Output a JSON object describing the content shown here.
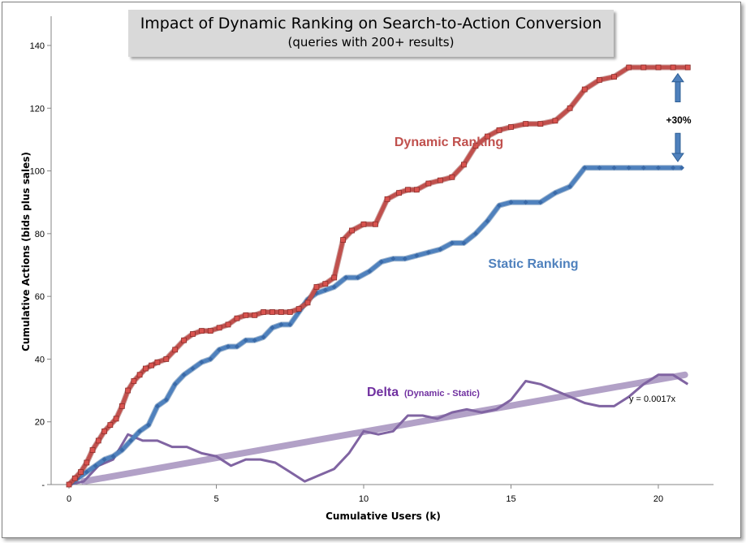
{
  "chart_data": {
    "type": "line",
    "title": "Impact of Dynamic Ranking on Search-to-Action Conversion",
    "subtitle": "(queries  with 200+ results)",
    "xlabel": "Cumulative Users (k)",
    "ylabel": "Cumulative Actions (bids plus sales)",
    "xlim": [
      -1,
      22
    ],
    "ylim": [
      0,
      140
    ],
    "x_ticks": [
      "0",
      "5",
      "10",
      "15",
      "20"
    ],
    "y_ticks": [
      "-",
      "20",
      "40",
      "60",
      "80",
      "100",
      "120",
      "140"
    ],
    "grid": false,
    "series": [
      {
        "name": "Dynamic Ranking",
        "color": "#c0504d",
        "marker": "square",
        "x": [
          0,
          0.2,
          0.4,
          0.6,
          0.8,
          1.0,
          1.2,
          1.4,
          1.6,
          1.8,
          2.0,
          2.2,
          2.4,
          2.6,
          2.8,
          3.0,
          3.3,
          3.6,
          3.9,
          4.2,
          4.5,
          4.8,
          5.1,
          5.4,
          5.7,
          6.0,
          6.3,
          6.6,
          6.9,
          7.2,
          7.5,
          7.8,
          8.1,
          8.4,
          8.7,
          9.0,
          9.3,
          9.6,
          10.0,
          10.4,
          10.8,
          11.2,
          11.5,
          11.8,
          12.2,
          12.6,
          13.0,
          13.4,
          13.8,
          14.2,
          14.6,
          15.0,
          15.5,
          16.0,
          16.5,
          17.0,
          17.5,
          18.0,
          18.5,
          19.0,
          19.5,
          20.0,
          20.5,
          21.0
        ],
        "y": [
          0,
          2,
          4,
          7,
          11,
          14,
          17,
          19,
          21,
          25,
          30,
          33,
          35,
          37,
          38,
          39,
          40,
          43,
          46,
          48,
          49,
          49,
          50,
          51,
          53,
          54,
          54,
          55,
          55,
          55,
          55,
          56,
          58,
          63,
          64,
          66,
          78,
          81,
          83,
          83,
          91,
          93,
          94,
          94,
          96,
          97,
          98,
          102,
          108,
          111,
          113,
          114,
          115,
          115,
          116,
          120,
          126,
          129,
          130,
          133,
          133,
          133,
          133,
          133
        ]
      },
      {
        "name": "Static Ranking",
        "color": "#4f81bd",
        "marker": "diamond",
        "x": [
          0,
          0.3,
          0.6,
          0.9,
          1.2,
          1.5,
          1.8,
          2.1,
          2.4,
          2.7,
          3.0,
          3.3,
          3.6,
          3.9,
          4.2,
          4.5,
          4.8,
          5.1,
          5.4,
          5.7,
          6.0,
          6.3,
          6.6,
          6.9,
          7.2,
          7.5,
          7.8,
          8.1,
          8.4,
          8.7,
          9.0,
          9.4,
          9.8,
          10.2,
          10.6,
          11.0,
          11.4,
          11.8,
          12.2,
          12.6,
          13.0,
          13.4,
          13.8,
          14.2,
          14.6,
          15.0,
          15.5,
          16.0,
          16.5,
          17.0,
          17.5,
          18.0,
          18.5,
          19.0,
          19.5,
          20.0,
          20.5,
          20.8
        ],
        "y": [
          0,
          2,
          4,
          6,
          8,
          9,
          11,
          14,
          17,
          19,
          25,
          27,
          32,
          35,
          37,
          39,
          40,
          43,
          44,
          44,
          46,
          46,
          47,
          50,
          51,
          51,
          55,
          59,
          61,
          62,
          63,
          66,
          66,
          68,
          71,
          72,
          72,
          73,
          74,
          75,
          77,
          77,
          80,
          84,
          89,
          90,
          90,
          90,
          93,
          95,
          101,
          101,
          101,
          101,
          101,
          101,
          101,
          101
        ]
      },
      {
        "name": "Delta",
        "name_suffix": "(Dynamic - Static)",
        "color": "#8064a2",
        "marker": "none",
        "x": [
          0,
          0.5,
          1.0,
          1.5,
          2.0,
          2.5,
          3.0,
          3.5,
          4.0,
          4.5,
          5.0,
          5.5,
          6.0,
          6.5,
          7.0,
          7.5,
          8.0,
          8.5,
          9.0,
          9.5,
          10.0,
          10.5,
          11.0,
          11.5,
          12.0,
          12.5,
          13.0,
          13.5,
          14.0,
          14.5,
          15.0,
          15.5,
          16.0,
          16.5,
          17.0,
          17.5,
          18.0,
          18.5,
          19.0,
          19.5,
          20.0,
          20.5,
          21.0
        ],
        "y": [
          0,
          1,
          6,
          8,
          16,
          14,
          14,
          12,
          12,
          10,
          9,
          6,
          8,
          8,
          7,
          4,
          1,
          3,
          5,
          10,
          17,
          16,
          17,
          22,
          22,
          21,
          23,
          24,
          23,
          24,
          27,
          33,
          32,
          30,
          28,
          26,
          25,
          25,
          28,
          32,
          35,
          35,
          32
        ]
      },
      {
        "name": "Linear trend (Delta)",
        "color": "#b2a1c7",
        "marker": "none",
        "x": [
          0.5,
          20.9
        ],
        "y": [
          1,
          35
        ]
      }
    ],
    "annotations": {
      "dynamic_label": "Dynamic Ranking",
      "static_label": "Static Ranking",
      "delta_label": "Delta",
      "delta_sub": "(Dynamic - Static)",
      "gap_label": "+30%",
      "trend_equation": "y = 0.0017x"
    }
  }
}
